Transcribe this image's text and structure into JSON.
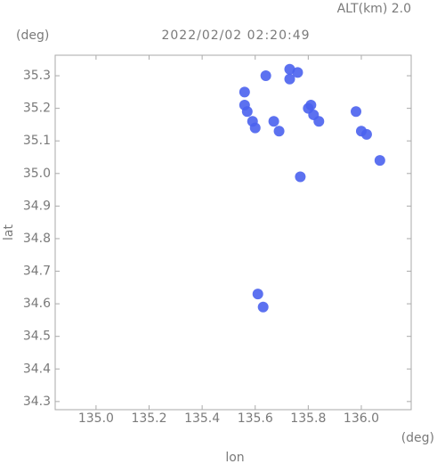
{
  "chart_data": {
    "type": "scatter",
    "title": "2022/02/02 02:20:49",
    "altitude_label": "ALT(km) 2.0",
    "y_unit": "(deg)",
    "x_unit": "(deg)",
    "xlabel": "lon",
    "ylabel": "lat",
    "xlim": [
      134.846,
      136.188
    ],
    "ylim": [
      34.275,
      35.363
    ],
    "xticks": [
      {
        "value": 135,
        "label": "135.0"
      },
      135.2,
      135.4,
      135.6,
      135.8,
      {
        "value": 136,
        "label": "136.0"
      }
    ],
    "yticks": [
      34.3,
      34.4,
      34.5,
      34.6,
      34.7,
      34.8,
      34.9,
      {
        "value": 35,
        "label": "35.0"
      },
      35.1,
      35.2,
      35.3
    ],
    "color": "#4a62ee",
    "x": [
      135.56,
      135.56,
      135.57,
      135.59,
      135.6,
      135.64,
      135.67,
      135.69,
      135.73,
      135.76,
      135.73,
      135.8,
      135.82,
      135.84,
      135.81,
      135.77,
      135.98,
      136.0,
      136.02,
      136.07,
      135.61,
      135.63
    ],
    "y": [
      35.25,
      35.21,
      35.19,
      35.16,
      35.14,
      35.3,
      35.16,
      35.13,
      35.32,
      35.31,
      35.29,
      35.2,
      35.18,
      35.16,
      35.21,
      34.99,
      35.19,
      35.13,
      35.12,
      35.04,
      34.63,
      34.59
    ]
  }
}
